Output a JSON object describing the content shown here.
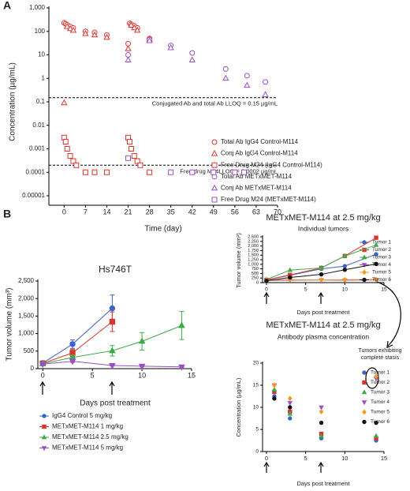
{
  "panel_labels": [
    "A",
    "B"
  ],
  "chart_data": [
    {
      "type": "scatter",
      "log_y": true,
      "ylabel": "Concentration (µg/mL)",
      "xlabel": "Time (day)",
      "xlim": [
        -5,
        70
      ],
      "xticks": [
        0,
        7,
        14,
        21,
        28,
        35,
        42,
        49,
        56,
        63,
        70
      ],
      "ylim": [
        1e-05,
        1000
      ],
      "yticks": [
        1e-05,
        0.0001,
        0.001,
        0.01,
        0.1,
        1,
        10,
        100,
        {
          "value": 1000,
          "label": "1,000"
        }
      ],
      "hlines": [
        {
          "value": 0.15,
          "label": "Conjugated Ab and total Ab LLOQ = 0.15 µg/mL"
        },
        {
          "value": 0.0002,
          "label": "Free drug M24LLOQ = 0.0002 µg/mL"
        }
      ],
      "series": [
        {
          "name": "Total Ab IgG4 Control-M114",
          "color": "#e0342c",
          "marker": "circle",
          "filled": false,
          "x": [
            0,
            0.5,
            1,
            2,
            3,
            7,
            10,
            14,
            21,
            21.5,
            22,
            23,
            24,
            28
          ],
          "values": [
            230,
            210,
            190,
            160,
            140,
            100,
            90,
            70,
            30,
            220,
            200,
            170,
            140,
            50
          ]
        },
        {
          "name": "Conj Ab IgG4 Control-M114",
          "color": "#e0342c",
          "marker": "triangle",
          "filled": false,
          "x": [
            0,
            1,
            2,
            3,
            7,
            10,
            14,
            21,
            22,
            23,
            24,
            28
          ],
          "values": [
            0.09,
            160,
            130,
            110,
            80,
            70,
            55,
            18,
            180,
            140,
            110,
            45
          ]
        },
        {
          "name": "Free Drug M24 (IgG4 Control-M114)",
          "color": "#e0342c",
          "marker": "square",
          "filled": false,
          "x": [
            0,
            0.5,
            1,
            2,
            3,
            4,
            7,
            10,
            14,
            21,
            21.5,
            22,
            23,
            24,
            25,
            28
          ],
          "values": [
            0.003,
            0.002,
            0.001,
            0.0005,
            0.0003,
            0.0002,
            0.0001,
            0.0001,
            0.0001,
            0.003,
            0.002,
            0.001,
            0.0005,
            0.0003,
            0.0002,
            0.0001
          ]
        },
        {
          "name": "Total Ab METxMET-M114",
          "color": "#9b4fc4",
          "marker": "circle",
          "filled": false,
          "x": [
            21,
            28,
            35,
            42,
            53,
            60,
            66
          ],
          "values": [
            10,
            45,
            25,
            12,
            2.5,
            1.3,
            0.7
          ]
        },
        {
          "name": "Conj Ab METxMET-M114",
          "color": "#9b4fc4",
          "marker": "triangle",
          "filled": false,
          "x": [
            21,
            28,
            35,
            42,
            53,
            60,
            66
          ],
          "values": [
            6,
            40,
            20,
            6,
            1,
            0.5,
            0.2
          ]
        },
        {
          "name": "Free Drug M24 (METxMET-M114)",
          "color": "#9b4fc4",
          "marker": "square",
          "filled": false,
          "x": [
            21,
            35,
            42,
            49,
            56,
            59
          ],
          "values": [
            0.0004,
            0.0001,
            0.0001,
            0.0001,
            0.0001,
            0.0001
          ]
        }
      ]
    },
    {
      "type": "line",
      "title": "Hs746T",
      "ylabel": "Tumor volume (mm³)",
      "xlabel": "Days post treatment",
      "xlim": [
        -0.5,
        15
      ],
      "xticks": [
        0,
        5,
        10,
        15
      ],
      "ylim": [
        0,
        2500
      ],
      "yticks": [
        0,
        500,
        {
          "value": 1000,
          "label": "1,000"
        },
        {
          "value": 1500,
          "label": "1,500"
        },
        {
          "value": 2000,
          "label": "2,000"
        },
        {
          "value": 2500,
          "label": "2,500"
        }
      ],
      "series": [
        {
          "name": "IgG4 Control 5 mg/kg",
          "color": "#3b63c9",
          "marker": "circle",
          "filled": true,
          "x": [
            0,
            3,
            7
          ],
          "values": [
            160,
            700,
            1720
          ],
          "errors": [
            20,
            120,
            380
          ]
        },
        {
          "name": "METxMET-M114 1 mg/kg",
          "color": "#d93530",
          "marker": "square",
          "filled": true,
          "x": [
            0,
            3,
            7
          ],
          "values": [
            150,
            450,
            1340
          ],
          "errors": [
            20,
            100,
            280
          ]
        },
        {
          "name": "METxMET-M114 2.5 mg/kg",
          "color": "#3dab47",
          "marker": "triangle",
          "filled": true,
          "x": [
            0,
            3,
            7,
            10,
            14
          ],
          "values": [
            140,
            320,
            510,
            780,
            1230
          ],
          "errors": [
            20,
            70,
            150,
            250,
            400
          ]
        },
        {
          "name": "METxMET-M114 5 mg/kg",
          "color": "#9b4fc4",
          "marker": "triangle-down",
          "filled": true,
          "x": [
            0,
            3,
            7,
            10,
            14
          ],
          "values": [
            130,
            210,
            90,
            70,
            50
          ],
          "errors": [
            15,
            30,
            15,
            10,
            10
          ]
        }
      ]
    },
    {
      "type": "line",
      "title": "METxMET-M114 at 2.5 mg/kg",
      "subtitle": "Individual tumors",
      "ylabel": "Tumor volume (mm³)",
      "xlabel": "Days post treatment",
      "xlim": [
        -0.5,
        15
      ],
      "xticks": [
        0,
        5,
        10,
        15
      ],
      "ylim": [
        0,
        2500
      ],
      "yticks": [
        0,
        250,
        500,
        750,
        {
          "value": 1000,
          "label": "1,000"
        },
        {
          "value": 1250,
          "label": "1,250"
        },
        {
          "value": 1500,
          "label": "1,500"
        },
        {
          "value": 1750,
          "label": "1,750"
        },
        {
          "value": 2000,
          "label": "2,000"
        },
        {
          "value": 2250,
          "label": "2,250"
        },
        {
          "value": 2500,
          "label": "2,500"
        }
      ],
      "series": [
        {
          "name": "Tumor 1",
          "color": "#3b63c9",
          "marker": "circle",
          "filled": true,
          "x": [
            0,
            3,
            7,
            10,
            14
          ],
          "values": [
            150,
            400,
            750,
            900,
            1550
          ]
        },
        {
          "name": "Tumor 2",
          "color": "#d93530",
          "marker": "square",
          "filled": true,
          "x": [
            0,
            3,
            7,
            10,
            14
          ],
          "values": [
            150,
            420,
            800,
            1450,
            2450
          ]
        },
        {
          "name": "Tumor 3",
          "color": "#3dab47",
          "marker": "triangle",
          "filled": true,
          "x": [
            0,
            3,
            7,
            10,
            14
          ],
          "values": [
            170,
            680,
            800,
            1450,
            2050
          ]
        },
        {
          "name": "Tumor 4",
          "color": "#9b4fc4",
          "marker": "triangle-down",
          "filled": true,
          "x": [
            0,
            3,
            7,
            10,
            14
          ],
          "values": [
            120,
            130,
            140,
            130,
            150
          ]
        },
        {
          "name": "Tumor 5",
          "color": "#f39a1e",
          "marker": "diamond",
          "filled": true,
          "x": [
            0,
            3,
            7,
            10,
            14
          ],
          "values": [
            140,
            160,
            150,
            160,
            170
          ]
        },
        {
          "name": "Tumor 6",
          "color": "#111111",
          "marker": "circle",
          "filled": true,
          "x": [
            0,
            3,
            7,
            10,
            14
          ],
          "values": [
            100,
            280,
            450,
            700,
            1020
          ]
        }
      ]
    },
    {
      "type": "scatter",
      "title": "METxMET-M114 at 2.5 mg/kg",
      "subtitle": "Antibody plasma concentration",
      "ylabel": "Concentration (µg/mL)",
      "xlabel": "Days post treatment",
      "annotation": [
        "Tumors exhibiting",
        "complete stasis"
      ],
      "xlim": [
        -0.5,
        15
      ],
      "xticks": [
        0,
        5,
        10,
        15
      ],
      "ylim": [
        0,
        20
      ],
      "yticks": [
        0,
        5,
        10,
        15,
        20
      ],
      "series": [
        {
          "name": "Tumor 1",
          "color": "#3b63c9",
          "marker": "circle",
          "filled": true,
          "x": [
            1,
            3,
            7,
            14
          ],
          "values": [
            12.5,
            7.5,
            3,
            2.5
          ]
        },
        {
          "name": "Tumor 2",
          "color": "#d93530",
          "marker": "square",
          "filled": true,
          "x": [
            1,
            3,
            7,
            14
          ],
          "values": [
            13.5,
            9,
            4,
            3
          ]
        },
        {
          "name": "Tumor 3",
          "color": "#3dab47",
          "marker": "triangle",
          "filled": true,
          "x": [
            1,
            3,
            7,
            14
          ],
          "values": [
            14,
            8.5,
            3.5,
            3.5
          ]
        },
        {
          "name": "Tumor 4",
          "color": "#9b4fc4",
          "marker": "triangle-down",
          "filled": true,
          "x": [
            1,
            3,
            7,
            14
          ],
          "values": [
            15,
            11,
            10,
            16.5
          ]
        },
        {
          "name": "Tumor 5",
          "color": "#f39a1e",
          "marker": "diamond",
          "filled": true,
          "x": [
            1,
            3,
            7,
            14
          ],
          "values": [
            15,
            12,
            9,
            17
          ]
        },
        {
          "name": "Tumor 6",
          "color": "#111111",
          "marker": "circle",
          "filled": true,
          "x": [
            1,
            3,
            7,
            14
          ],
          "values": [
            12,
            10,
            6.5,
            6.5
          ]
        }
      ]
    }
  ]
}
